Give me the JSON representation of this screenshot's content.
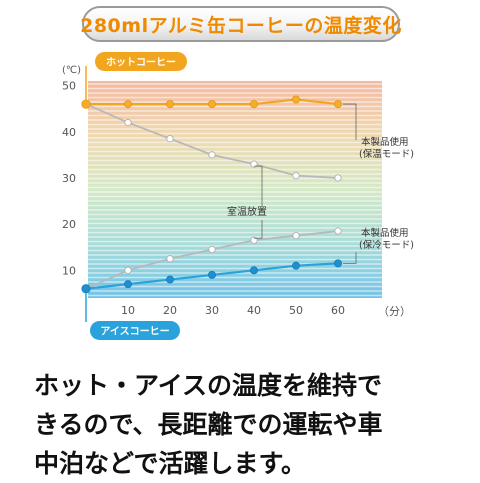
{
  "title": "280mlアルミ缶コーヒーの温度変化",
  "colors": {
    "title": "#ef8a00",
    "hot": "#f2a51f",
    "hot_marker": "#f5ae2b",
    "room_line": "#b8b8b8",
    "room_marker": "#ffffff",
    "cold": "#2aa3dc",
    "cold_marker": "#1f8fcf"
  },
  "chart_data": {
    "type": "line",
    "x_unit": "（分）",
    "y_unit": "(℃)",
    "x_ticks": [
      10,
      20,
      30,
      40,
      50,
      60
    ],
    "y_ticks": [
      10,
      20,
      30,
      40,
      50
    ],
    "xlim": [
      0,
      70
    ],
    "ylim": [
      4,
      51
    ],
    "series": [
      {
        "name": "本製品使用 (保温モード)",
        "style": "hot-product",
        "x": [
          0,
          10,
          20,
          30,
          40,
          50,
          60
        ],
        "y": [
          46,
          46,
          46,
          46,
          46,
          47,
          46
        ]
      },
      {
        "name": "室温放置",
        "style": "hot-room",
        "x": [
          0,
          10,
          20,
          30,
          40,
          50,
          60
        ],
        "y": [
          46,
          42,
          38.5,
          35,
          33,
          30.5,
          30
        ]
      },
      {
        "name": "室温放置",
        "style": "cold-room",
        "x": [
          0,
          10,
          20,
          30,
          40,
          50,
          60
        ],
        "y": [
          6,
          10,
          12.5,
          14.5,
          16.5,
          17.5,
          18.5
        ]
      },
      {
        "name": "本製品使用 (保冷モード)",
        "style": "cold-product",
        "x": [
          0,
          10,
          20,
          30,
          40,
          50,
          60
        ],
        "y": [
          6,
          7,
          8,
          9,
          10,
          11,
          11.5
        ]
      }
    ],
    "start_labels": {
      "hot": "ホットコーヒー",
      "cold": "アイスコーヒー"
    },
    "annotations": {
      "room": "室温放置",
      "warm_mode": [
        "本製品使用",
        "(保温モード)"
      ],
      "cool_mode": [
        "本製品使用",
        "(保冷モード)"
      ]
    }
  },
  "caption": [
    "ホット・アイスの温度を維持で",
    "きるので、長距離での運転や車",
    "中泊などで活躍します。"
  ]
}
